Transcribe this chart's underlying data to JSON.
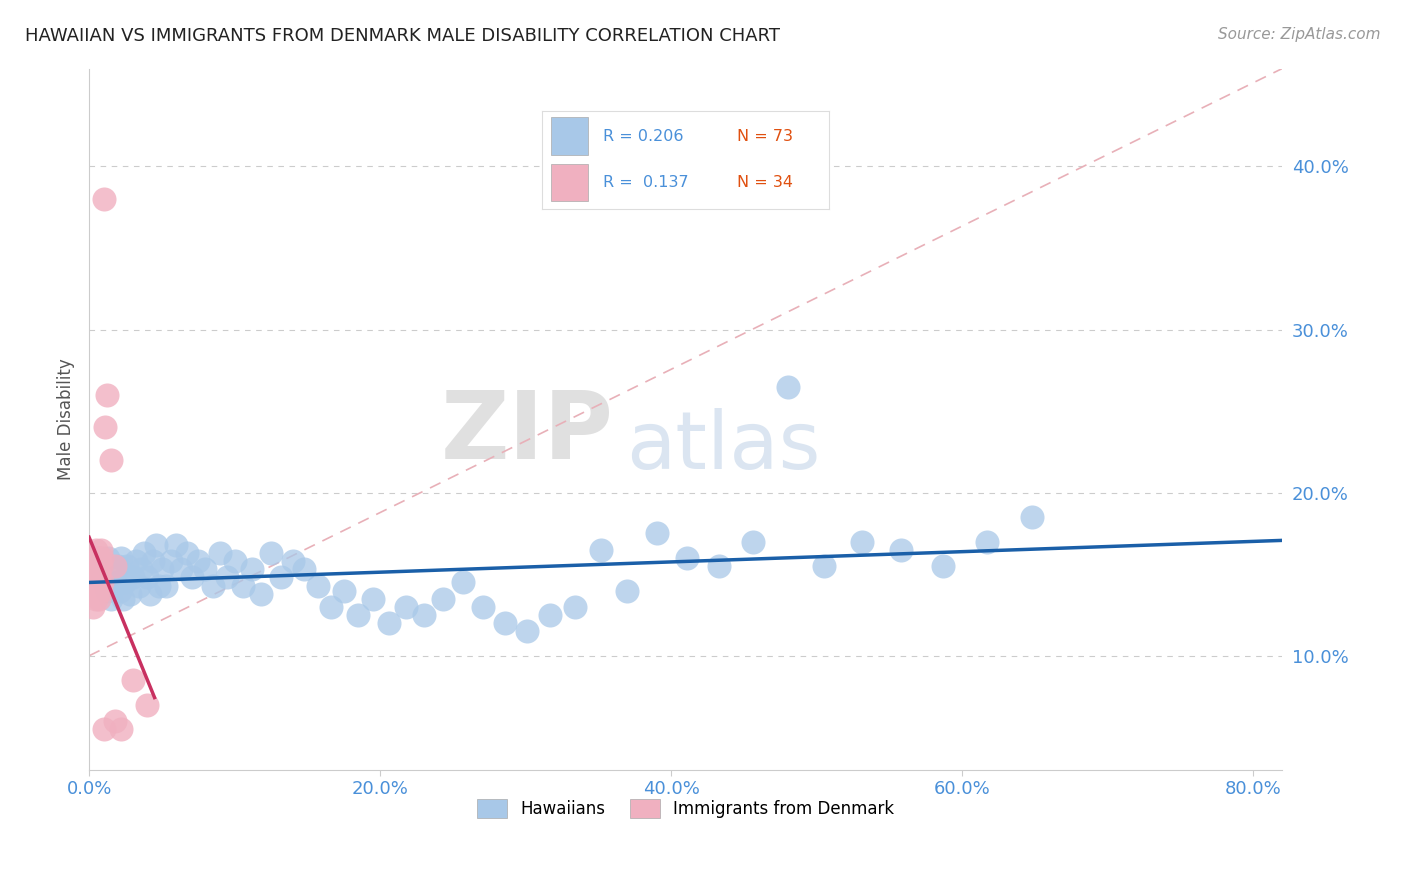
{
  "title": "HAWAIIAN VS IMMIGRANTS FROM DENMARK MALE DISABILITY CORRELATION CHART",
  "source": "Source: ZipAtlas.com",
  "xlabel_ticks": [
    "0.0%",
    "20.0%",
    "40.0%",
    "60.0%",
    "80.0%"
  ],
  "xlabel_tick_vals": [
    0.0,
    0.2,
    0.4,
    0.6,
    0.8
  ],
  "ylabel": "Male Disability",
  "ylabel_ticks": [
    "10.0%",
    "20.0%",
    "30.0%",
    "40.0%"
  ],
  "ylabel_tick_vals": [
    0.1,
    0.2,
    0.3,
    0.4
  ],
  "xlim": [
    0.0,
    0.82
  ],
  "ylim": [
    0.03,
    0.46
  ],
  "hawaiian_color": "#a8c8e8",
  "hawaii_line_color": "#1a5fa8",
  "denmark_color": "#f0b0c0",
  "denmark_line_color": "#c83060",
  "diagonal_color": "#e8b0b8",
  "watermark_zip": "ZIP",
  "watermark_atlas": "atlas",
  "hawaiian_x": [
    0.005,
    0.008,
    0.01,
    0.012,
    0.013,
    0.015,
    0.016,
    0.018,
    0.02,
    0.021,
    0.022,
    0.023,
    0.025,
    0.026,
    0.028,
    0.03,
    0.032,
    0.034,
    0.036,
    0.038,
    0.04,
    0.042,
    0.044,
    0.046,
    0.048,
    0.05,
    0.053,
    0.056,
    0.06,
    0.063,
    0.067,
    0.071,
    0.075,
    0.08,
    0.085,
    0.09,
    0.095,
    0.1,
    0.106,
    0.112,
    0.118,
    0.125,
    0.132,
    0.14,
    0.148,
    0.157,
    0.166,
    0.175,
    0.185,
    0.195,
    0.206,
    0.218,
    0.23,
    0.243,
    0.257,
    0.271,
    0.286,
    0.301,
    0.317,
    0.334,
    0.352,
    0.37,
    0.39,
    0.411,
    0.433,
    0.456,
    0.48,
    0.505,
    0.531,
    0.558,
    0.587,
    0.617,
    0.648
  ],
  "hawaiian_y": [
    0.155,
    0.15,
    0.145,
    0.14,
    0.16,
    0.135,
    0.15,
    0.145,
    0.155,
    0.14,
    0.16,
    0.135,
    0.145,
    0.155,
    0.138,
    0.148,
    0.158,
    0.143,
    0.153,
    0.163,
    0.148,
    0.138,
    0.158,
    0.168,
    0.143,
    0.153,
    0.143,
    0.158,
    0.168,
    0.153,
    0.163,
    0.148,
    0.158,
    0.153,
    0.143,
    0.163,
    0.148,
    0.158,
    0.143,
    0.153,
    0.138,
    0.163,
    0.148,
    0.158,
    0.153,
    0.143,
    0.13,
    0.14,
    0.125,
    0.135,
    0.12,
    0.13,
    0.125,
    0.135,
    0.145,
    0.13,
    0.12,
    0.115,
    0.125,
    0.13,
    0.165,
    0.14,
    0.175,
    0.16,
    0.155,
    0.17,
    0.265,
    0.155,
    0.17,
    0.165,
    0.155,
    0.17,
    0.185
  ],
  "denmark_x": [
    0.001,
    0.002,
    0.003,
    0.003,
    0.004,
    0.004,
    0.004,
    0.005,
    0.005,
    0.005,
    0.005,
    0.006,
    0.006,
    0.006,
    0.006,
    0.007,
    0.007,
    0.007,
    0.007,
    0.008,
    0.008,
    0.008,
    0.009,
    0.009,
    0.01,
    0.011,
    0.012,
    0.015,
    0.018,
    0.022,
    0.03,
    0.04,
    0.018,
    0.01
  ],
  "denmark_y": [
    0.145,
    0.155,
    0.13,
    0.15,
    0.14,
    0.155,
    0.16,
    0.135,
    0.148,
    0.158,
    0.165,
    0.14,
    0.15,
    0.16,
    0.145,
    0.135,
    0.15,
    0.16,
    0.145,
    0.14,
    0.155,
    0.165,
    0.145,
    0.16,
    0.38,
    0.24,
    0.26,
    0.22,
    0.06,
    0.055,
    0.085,
    0.07,
    0.155,
    0.055
  ]
}
